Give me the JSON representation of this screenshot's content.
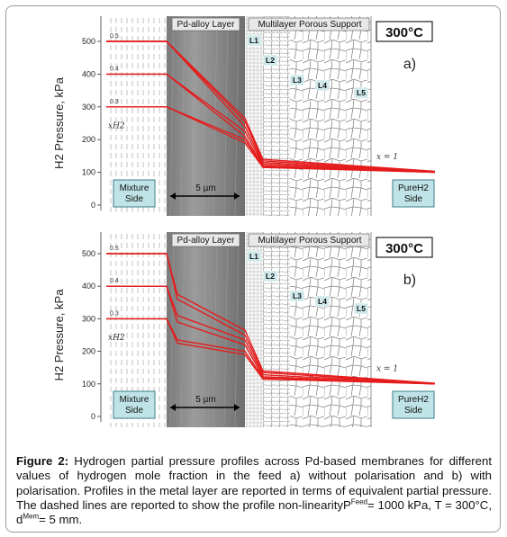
{
  "chart_data": [
    {
      "type": "line",
      "panel_label": "a)",
      "temperature": "300°C",
      "ylabel": "H2 Pressure, kPa",
      "yticks": [
        0,
        100,
        200,
        300,
        400,
        500
      ],
      "ylim": [
        0,
        540
      ],
      "regions": {
        "left": "Mixture Side",
        "pd": "Pd-alloy Layer",
        "support": "Multilayer Porous Support",
        "right": "PureH2 Side"
      },
      "scale_bar": "5 µm",
      "layer_labels": [
        "L1",
        "L2",
        "L3",
        "L4",
        "L5"
      ],
      "feed_fractions": [
        "0.5",
        "0.4",
        "0.3"
      ],
      "mixture_label": "x_H2^Mix",
      "pure_label": "x_H2^PureH2 = 1",
      "series": [
        {
          "start": 500,
          "interface": 265,
          "support_in": 140,
          "end": 103
        },
        {
          "start": 500,
          "interface": 255,
          "support_in": 135,
          "end": 102
        },
        {
          "start": 500,
          "interface": 240,
          "support_in": 130,
          "end": 101
        },
        {
          "start": 400,
          "interface": 225,
          "support_in": 125,
          "end": 101
        },
        {
          "start": 400,
          "interface": 210,
          "support_in": 120,
          "end": 100
        },
        {
          "start": 300,
          "interface": 200,
          "support_in": 118,
          "end": 100
        },
        {
          "start": 300,
          "interface": 190,
          "support_in": 115,
          "end": 100
        }
      ]
    },
    {
      "type": "line",
      "panel_label": "b)",
      "temperature": "300°C",
      "ylabel": "H2 Pressure, kPa",
      "yticks": [
        0,
        100,
        200,
        300,
        400,
        500
      ],
      "ylim": [
        0,
        540
      ],
      "regions": {
        "left": "Mixture Side",
        "pd": "Pd-alloy Layer",
        "support": "Multilayer Porous Support",
        "right": "PureH2 Side"
      },
      "scale_bar": "5 µm",
      "layer_labels": [
        "L1",
        "L2",
        "L3",
        "L4",
        "L5"
      ],
      "feed_fractions": [
        "0.5",
        "0.4",
        "0.3"
      ],
      "mixture_label": "x_H2^Mix",
      "pure_label": "x_H2^PureH2 = 1",
      "series": [
        {
          "start": 500,
          "bend": 375,
          "interface": 265,
          "support_in": 140,
          "end": 102
        },
        {
          "start": 500,
          "bend": 360,
          "interface": 250,
          "support_in": 135,
          "end": 101
        },
        {
          "start": 400,
          "bend": 310,
          "interface": 235,
          "support_in": 128,
          "end": 101
        },
        {
          "start": 400,
          "bend": 290,
          "interface": 220,
          "support_in": 122,
          "end": 100
        },
        {
          "start": 300,
          "bend": 235,
          "interface": 200,
          "support_in": 118,
          "end": 100
        },
        {
          "start": 300,
          "bend": 225,
          "interface": 190,
          "support_in": 115,
          "end": 100
        }
      ]
    }
  ],
  "caption": {
    "label": "Figure 2:",
    "text": "Hydrogen partial pressure profiles across Pd-based membranes for different values of hydrogen mole fraction in the feed a) without polarisation and b) with polarisation. Profiles in the metal layer are reported in terms of equivalent partial pressure. The dashed lines are reported to show the profile non-linearity",
    "tail_1": "P",
    "sup_1": "Feed",
    "tail_2": "= 1000 kPa, T = 300°C, d",
    "sup_2": "Mem",
    "tail_3": "= 5 mm."
  },
  "colors": {
    "line": "#e51c1c",
    "pd_layer": "#8b8b8b",
    "box_fill": "#bfe3e6",
    "box_border": "#3c7f88"
  }
}
